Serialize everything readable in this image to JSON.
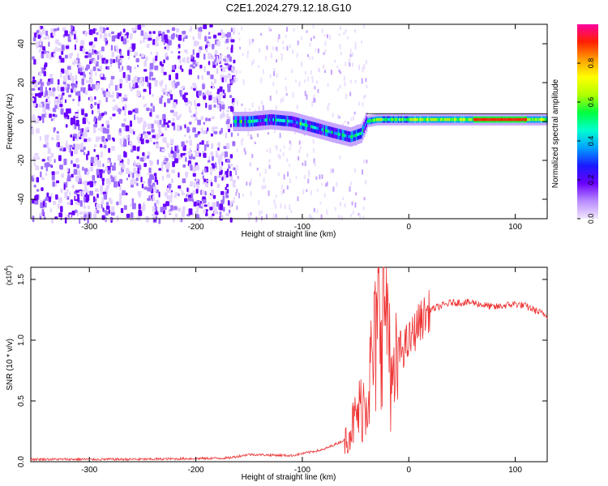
{
  "title": "C2E1.2024.279.12.18.G10",
  "chart_data": [
    {
      "type": "heatmap",
      "xlabel": "Height of straight line (km)",
      "ylabel": "Frequency (Hz)",
      "xlim": [
        -355,
        130
      ],
      "ylim": [
        -50,
        50
      ],
      "x_ticks": [
        -300,
        -200,
        -100,
        0,
        100
      ],
      "y_ticks": [
        -40,
        -20,
        0,
        20,
        40
      ],
      "colorbar": {
        "label": "Normalized spectral amplitude",
        "range": [
          0,
          1
        ],
        "ticks": [
          "0.0",
          "0.2",
          "0.4",
          "0.6",
          "0.8"
        ],
        "tick_values": [
          0,
          0.2,
          0.4,
          0.6,
          0.8
        ],
        "colors": [
          "#f2e6ff",
          "#b98cff",
          "#6a00ff",
          "#1a1aff",
          "#00a0ff",
          "#00ffd0",
          "#00ff40",
          "#b0ff00",
          "#ffff00",
          "#ffa000",
          "#ff2000",
          "#ff00a0"
        ]
      },
      "noise_region_x": [
        -355,
        -165
      ],
      "signal_line": {
        "x": [
          -165,
          -150,
          -130,
          -110,
          -90,
          -70,
          -55,
          -45,
          -40,
          -30,
          -20,
          0,
          50,
          100,
          130
        ],
        "y": [
          0,
          0,
          1,
          0,
          -3,
          -6,
          -8,
          -6,
          0,
          1,
          1,
          1,
          1,
          1,
          1
        ]
      }
    },
    {
      "type": "line",
      "xlabel": "Height of straight line (km)",
      "ylabel": "SNR (10 * v/v)",
      "multiplier_label": "(x10",
      "multiplier_exp": "4",
      "multiplier_close": ")",
      "xlim": [
        -355,
        130
      ],
      "ylim": [
        0,
        1.6
      ],
      "x_ticks": [
        -300,
        -200,
        -100,
        0,
        100
      ],
      "y_ticks": [
        0,
        0.5,
        1.0,
        1.5
      ],
      "y_tick_labels": [
        "0.0",
        "0.5",
        "1.0",
        "1.5"
      ],
      "color": "#ee3333",
      "series_envelope": {
        "x": [
          -355,
          -250,
          -170,
          -150,
          -110,
          -80,
          -60,
          -50,
          -40,
          -30,
          -25,
          -20,
          -15,
          -10,
          0,
          10,
          20,
          30,
          40,
          60,
          80,
          100,
          110,
          130
        ],
        "y": [
          0.02,
          0.02,
          0.03,
          0.06,
          0.05,
          0.1,
          0.18,
          0.35,
          0.55,
          1.0,
          1.5,
          1.3,
          0.5,
          0.9,
          0.98,
          1.15,
          1.25,
          1.28,
          1.31,
          1.31,
          1.27,
          1.3,
          1.28,
          1.2
        ]
      }
    }
  ]
}
